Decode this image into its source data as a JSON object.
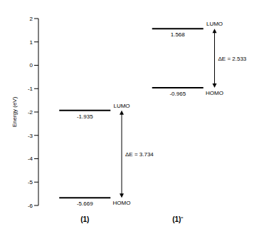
{
  "chart_data": {
    "type": "energy_level",
    "y_label": "Energy (eV)",
    "ylim": [
      -6,
      2
    ],
    "yticks": [
      -6,
      -5,
      -4,
      -3,
      -2,
      -1,
      0,
      1,
      2
    ],
    "categories": [
      "(1)",
      "(1)⁻"
    ],
    "series": [
      {
        "name": "LUMO",
        "color": "#000000",
        "values": [
          -1.935,
          1.568
        ]
      },
      {
        "name": "HOMO",
        "color": "#000000",
        "values": [
          -5.669,
          -0.965
        ]
      }
    ],
    "gaps": {
      "values": [
        3.734,
        2.533
      ],
      "value_labels": [
        "ΔE = 3.734",
        "ΔE = 2.533"
      ]
    },
    "data_labels": true,
    "grid": false,
    "tick_labels": true
  }
}
